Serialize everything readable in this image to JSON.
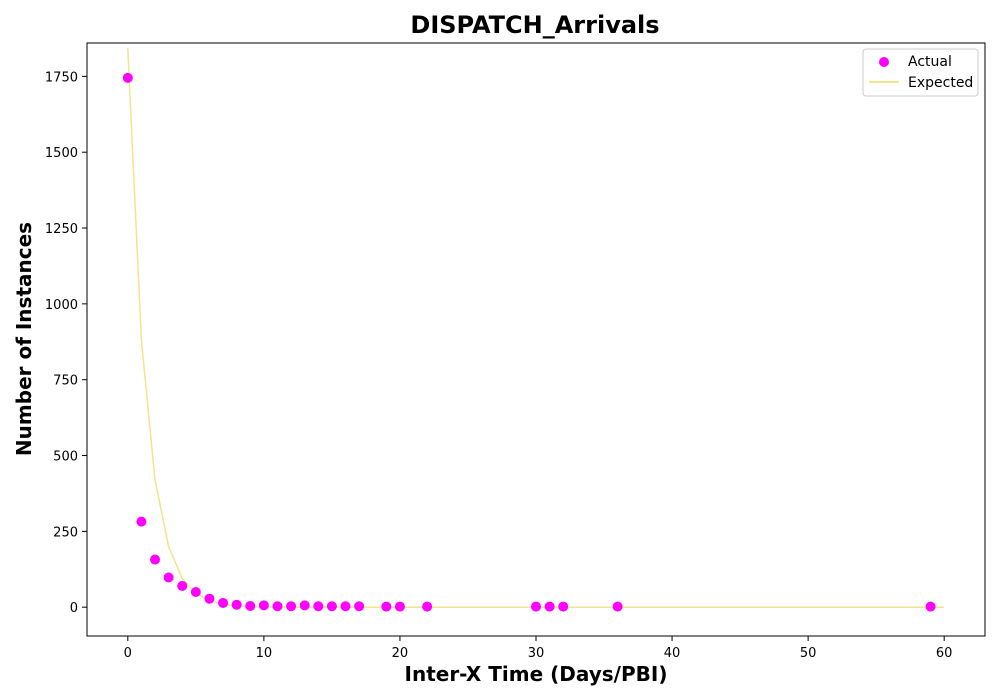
{
  "chart_data": {
    "type": "scatter",
    "title": "DISPATCH_Arrivals",
    "xlabel": "Inter-X Time (Days/PBI)",
    "ylabel": "Number of Instances",
    "xlim": [
      -3,
      63
    ],
    "ylim": [
      -95,
      1860
    ],
    "xticks": [
      0,
      10,
      20,
      30,
      40,
      50,
      60
    ],
    "yticks": [
      0,
      250,
      500,
      750,
      1000,
      1250,
      1500,
      1750
    ],
    "grid": false,
    "legend_position": "top-right",
    "series": [
      {
        "name": "Actual",
        "kind": "scatter",
        "color": "#ff00ff",
        "x": [
          0,
          1,
          2,
          3,
          4,
          5,
          6,
          7,
          8,
          9,
          10,
          11,
          12,
          13,
          14,
          15,
          16,
          17,
          19,
          20,
          22,
          30,
          31,
          32,
          36,
          59
        ],
        "y": [
          1745,
          282,
          157,
          98,
          70,
          50,
          28,
          14,
          8,
          4,
          6,
          3,
          3,
          6,
          3,
          3,
          3,
          3,
          2,
          2,
          2,
          2,
          2,
          2,
          2,
          2
        ]
      },
      {
        "name": "Expected",
        "kind": "line",
        "color": "#f0e68c",
        "x": [
          0,
          1,
          2,
          3,
          4,
          5,
          6,
          7,
          8,
          9,
          10,
          12,
          15,
          20,
          30,
          40,
          50,
          60
        ],
        "y": [
          1843,
          880,
          420,
          200,
          95,
          46,
          22,
          10,
          5,
          2.4,
          1.1,
          0.3,
          0,
          0,
          0,
          0,
          0,
          0
        ]
      }
    ]
  }
}
